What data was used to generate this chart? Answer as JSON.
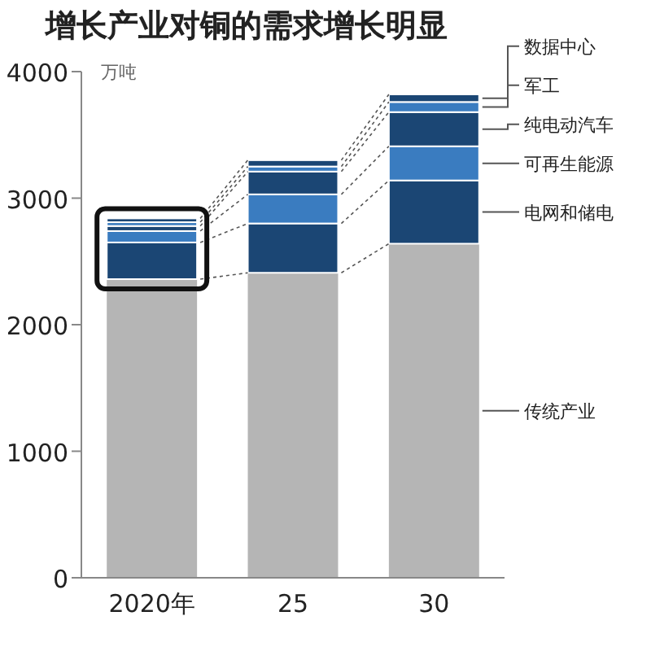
{
  "chart_data": {
    "type": "bar",
    "stacked": true,
    "title": "增长产业对铜的需求增长明显",
    "ylabel": "万吨",
    "categories": [
      "2020年",
      "25",
      "30"
    ],
    "series": [
      {
        "name": "传统产业",
        "color": "#b5b5b5",
        "values": [
          2360,
          2410,
          2640
        ]
      },
      {
        "name": "电网和储电",
        "color": "#1b4674",
        "values": [
          290,
          390,
          500
        ]
      },
      {
        "name": "可再生能源",
        "color": "#3a7cc0",
        "values": [
          90,
          230,
          270
        ]
      },
      {
        "name": "纯电动汽车",
        "color": "#1b4674",
        "values": [
          40,
          180,
          270
        ]
      },
      {
        "name": "军工",
        "color": "#3a7cc0",
        "values": [
          30,
          40,
          80
        ]
      },
      {
        "name": "数据中心",
        "color": "#1b4674",
        "values": [
          30,
          50,
          60
        ]
      }
    ],
    "ylim": [
      0,
      4000
    ],
    "yticks": [
      0,
      1000,
      2000,
      3000,
      4000
    ],
    "grid": false
  }
}
